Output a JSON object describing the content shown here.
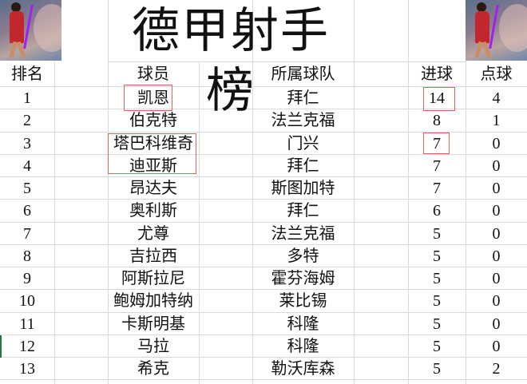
{
  "title": "德甲射手榜",
  "header": {
    "rank": "排名",
    "player": "球员",
    "team": "所属球队",
    "goals": "进球",
    "penalties": "点球"
  },
  "rows": [
    {
      "rank": "1",
      "player": "凯恩",
      "team": "拜仁",
      "goals": "14",
      "penalties": "4"
    },
    {
      "rank": "2",
      "player": "伯克特",
      "team": "法兰克福",
      "goals": "8",
      "penalties": "1"
    },
    {
      "rank": "3",
      "player": "塔巴科维奇",
      "team": "门兴",
      "goals": "7",
      "penalties": "0"
    },
    {
      "rank": "4",
      "player": "迪亚斯",
      "team": "拜仁",
      "goals": "7",
      "penalties": "0"
    },
    {
      "rank": "5",
      "player": "昂达夫",
      "team": "斯图加特",
      "goals": "7",
      "penalties": "0"
    },
    {
      "rank": "6",
      "player": "奥利斯",
      "team": "拜仁",
      "goals": "6",
      "penalties": "0"
    },
    {
      "rank": "7",
      "player": "尤尊",
      "team": "法兰克福",
      "goals": "5",
      "penalties": "0"
    },
    {
      "rank": "8",
      "player": "吉拉西",
      "team": "多特",
      "goals": "5",
      "penalties": "0"
    },
    {
      "rank": "9",
      "player": "阿斯拉尼",
      "team": "霍芬海姆",
      "goals": "5",
      "penalties": "0"
    },
    {
      "rank": "10",
      "player": "鲍姆加特纳",
      "team": "莱比锡",
      "goals": "5",
      "penalties": "0"
    },
    {
      "rank": "11",
      "player": "卡斯明基",
      "team": "科隆",
      "goals": "5",
      "penalties": "0"
    },
    {
      "rank": "12",
      "player": "马拉",
      "team": "科隆",
      "goals": "5",
      "penalties": "0"
    },
    {
      "rank": "13",
      "player": "希克",
      "team": "勒沃库森",
      "goals": "5",
      "penalties": "2"
    }
  ],
  "colors": {
    "highlight_box": "#e06060",
    "grid": "#dadada"
  }
}
